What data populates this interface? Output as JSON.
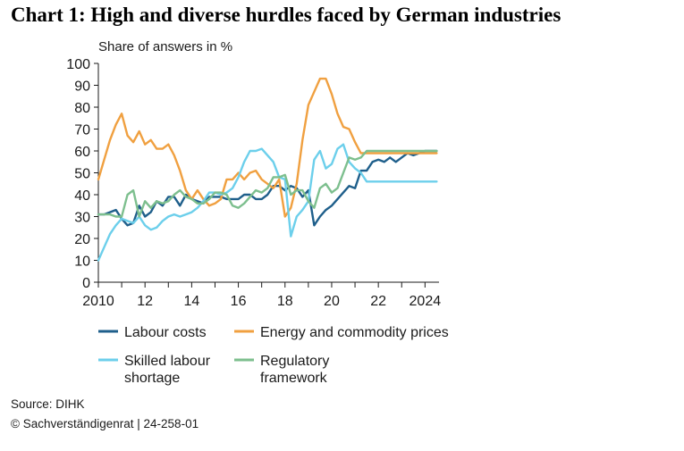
{
  "title": "Chart 1: High and diverse hurdles faced by German industries",
  "source": "Source: DIHK",
  "copyright": "© Sachverständigenrat | 24-258-01",
  "chart_data": {
    "type": "line",
    "title": "Chart 1: High and diverse hurdles faced by German industries",
    "ylabel": "Share of answers in %",
    "xlabel": "",
    "xlim": [
      2010,
      2024.6
    ],
    "ylim": [
      0,
      100
    ],
    "x_ticks": [
      2010,
      2012,
      2014,
      2016,
      2018,
      2020,
      2022,
      2024
    ],
    "x_tick_labels": [
      "2010",
      "12",
      "14",
      "16",
      "18",
      "20",
      "22",
      "2024"
    ],
    "y_ticks": [
      0,
      10,
      20,
      30,
      40,
      50,
      60,
      70,
      80,
      90,
      100
    ],
    "y_tick_labels": [
      "0",
      "10",
      "20",
      "30",
      "40",
      "50",
      "60",
      "70",
      "80",
      "90",
      "100"
    ],
    "grid": false,
    "x": [
      2010.0,
      2010.25,
      2010.5,
      2010.75,
      2011.0,
      2011.25,
      2011.5,
      2011.75,
      2012.0,
      2012.25,
      2012.5,
      2012.75,
      2013.0,
      2013.25,
      2013.5,
      2013.75,
      2014.0,
      2014.25,
      2014.5,
      2014.75,
      2015.0,
      2015.25,
      2015.5,
      2015.75,
      2016.0,
      2016.25,
      2016.5,
      2016.75,
      2017.0,
      2017.25,
      2017.5,
      2017.75,
      2018.0,
      2018.25,
      2018.5,
      2018.75,
      2019.0,
      2019.25,
      2019.5,
      2019.75,
      2020.0,
      2020.25,
      2020.5,
      2020.75,
      2021.0,
      2021.25,
      2021.5,
      2021.75,
      2022.0,
      2022.25,
      2022.5,
      2022.75,
      2023.0,
      2023.25,
      2023.5,
      2023.75,
      2024.0,
      2024.25,
      2024.5
    ],
    "series": [
      {
        "name": "Labour costs",
        "color": "#1f5f8b",
        "values": [
          31,
          31,
          32,
          33,
          29,
          26,
          27,
          35,
          30,
          32,
          37,
          35,
          39,
          39,
          35,
          40,
          38,
          37,
          36,
          39,
          39,
          39,
          38,
          38,
          38,
          40,
          40,
          38,
          38,
          40,
          44,
          44,
          42,
          44,
          43,
          39,
          42,
          26,
          30,
          33,
          35,
          38,
          41,
          44,
          43,
          51,
          51,
          55,
          56,
          55,
          57,
          55,
          57,
          59,
          58,
          59,
          60,
          60,
          60
        ]
      },
      {
        "name": "Energy and commodity prices",
        "color": "#f0a040",
        "values": [
          47,
          56,
          65,
          72,
          77,
          67,
          64,
          69,
          63,
          65,
          61,
          61,
          63,
          58,
          51,
          42,
          38,
          42,
          38,
          35,
          36,
          38,
          47,
          47,
          50,
          47,
          50,
          51,
          47,
          45,
          43,
          47,
          30,
          34,
          45,
          65,
          81,
          87,
          93,
          93,
          86,
          77,
          71,
          70,
          64,
          59,
          59,
          59,
          59,
          59,
          59,
          59,
          59,
          59,
          59,
          59,
          59,
          59,
          59
        ]
      },
      {
        "name": "Skilled labour shortage",
        "color": "#6ccfeb",
        "values": [
          10,
          16,
          22,
          26,
          29,
          28,
          27,
          30,
          26,
          24,
          25,
          28,
          30,
          31,
          30,
          31,
          32,
          34,
          37,
          41,
          41,
          40,
          41,
          43,
          48,
          55,
          60,
          60,
          61,
          58,
          55,
          48,
          47,
          21,
          30,
          33,
          37,
          56,
          60,
          52,
          54,
          61,
          63,
          55,
          52,
          50,
          46,
          46,
          46,
          46,
          46,
          46,
          46,
          46,
          46,
          46,
          46,
          46,
          46
        ]
      },
      {
        "name": "Regulatory framework",
        "color": "#7dbf8e",
        "values": [
          31,
          31,
          31,
          30,
          30,
          40,
          42,
          30,
          37,
          34,
          37,
          36,
          37,
          40,
          42,
          39,
          38,
          36,
          36,
          38,
          41,
          41,
          40,
          35,
          34,
          36,
          39,
          42,
          41,
          43,
          48,
          48,
          49,
          40,
          42,
          42,
          37,
          34,
          43,
          45,
          41,
          43,
          50,
          57,
          56,
          57,
          60,
          60,
          60,
          60,
          60,
          60,
          60,
          60,
          60,
          60,
          60,
          60,
          60
        ]
      }
    ],
    "legend": [
      "Labour costs",
      "Energy and commodity prices",
      "Skilled labour shortage",
      "Regulatory framework"
    ],
    "legend_display": [
      {
        "name": "Labour costs",
        "lines": [
          "Labour costs"
        ]
      },
      {
        "name": "Energy and commodity prices",
        "lines": [
          "Energy and commodity prices"
        ]
      },
      {
        "name": "Skilled labour shortage",
        "lines": [
          "Skilled labour",
          "shortage"
        ]
      },
      {
        "name": "Regulatory framework",
        "lines": [
          "Regulatory",
          "framework"
        ]
      }
    ],
    "legend_position": "bottom"
  }
}
